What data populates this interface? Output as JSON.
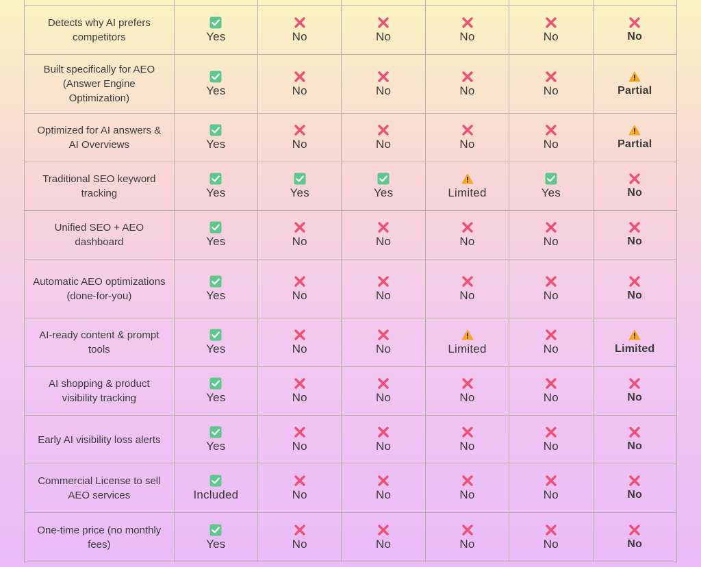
{
  "rows": [
    {
      "feature": "Detects why AI prefers competitors",
      "cells": [
        [
          "check",
          "Yes"
        ],
        [
          "x",
          "No"
        ],
        [
          "x",
          "No"
        ],
        [
          "x",
          "No"
        ],
        [
          "x",
          "No"
        ],
        [
          "x",
          "No"
        ]
      ]
    },
    {
      "feature": "Built specifically for AEO (Answer Engine Optimization)",
      "cells": [
        [
          "check",
          "Yes"
        ],
        [
          "x",
          "No"
        ],
        [
          "x",
          "No"
        ],
        [
          "x",
          "No"
        ],
        [
          "x",
          "No"
        ],
        [
          "warn",
          "Partial"
        ]
      ]
    },
    {
      "feature": "Optimized for AI answers & AI Overviews",
      "cells": [
        [
          "check",
          "Yes"
        ],
        [
          "x",
          "No"
        ],
        [
          "x",
          "No"
        ],
        [
          "x",
          "No"
        ],
        [
          "x",
          "No"
        ],
        [
          "warn",
          "Partial"
        ]
      ]
    },
    {
      "feature": "Traditional SEO keyword tracking",
      "cells": [
        [
          "check",
          "Yes"
        ],
        [
          "check",
          "Yes"
        ],
        [
          "check",
          "Yes"
        ],
        [
          "warn",
          "Limited"
        ],
        [
          "check",
          "Yes"
        ],
        [
          "x",
          "No"
        ]
      ]
    },
    {
      "feature": "Unified SEO + AEO dashboard",
      "cells": [
        [
          "check",
          "Yes"
        ],
        [
          "x",
          "No"
        ],
        [
          "x",
          "No"
        ],
        [
          "x",
          "No"
        ],
        [
          "x",
          "No"
        ],
        [
          "x",
          "No"
        ]
      ]
    },
    {
      "feature": "Automatic AEO optimizations (done-for-you)",
      "cells": [
        [
          "check",
          "Yes"
        ],
        [
          "x",
          "No"
        ],
        [
          "x",
          "No"
        ],
        [
          "x",
          "No"
        ],
        [
          "x",
          "No"
        ],
        [
          "x",
          "No"
        ]
      ]
    },
    {
      "feature": "AI-ready content & prompt tools",
      "cells": [
        [
          "check",
          "Yes"
        ],
        [
          "x",
          "No"
        ],
        [
          "x",
          "No"
        ],
        [
          "warn",
          "Limited"
        ],
        [
          "x",
          "No"
        ],
        [
          "warn",
          "Limited"
        ]
      ]
    },
    {
      "feature": "AI shopping & product visibility tracking",
      "cells": [
        [
          "check",
          "Yes"
        ],
        [
          "x",
          "No"
        ],
        [
          "x",
          "No"
        ],
        [
          "x",
          "No"
        ],
        [
          "x",
          "No"
        ],
        [
          "x",
          "No"
        ]
      ]
    },
    {
      "feature": "Early AI visibility loss alerts",
      "cells": [
        [
          "check",
          "Yes"
        ],
        [
          "x",
          "No"
        ],
        [
          "x",
          "No"
        ],
        [
          "x",
          "No"
        ],
        [
          "x",
          "No"
        ],
        [
          "x",
          "No"
        ]
      ]
    },
    {
      "feature": "Commercial License to sell AEO services",
      "cells": [
        [
          "check",
          "Included"
        ],
        [
          "x",
          "No"
        ],
        [
          "x",
          "No"
        ],
        [
          "x",
          "No"
        ],
        [
          "x",
          "No"
        ],
        [
          "x",
          "No"
        ]
      ]
    },
    {
      "feature": "One-time price (no monthly fees)",
      "cells": [
        [
          "check",
          "Yes"
        ],
        [
          "x",
          "No"
        ],
        [
          "x",
          "No"
        ],
        [
          "x",
          "No"
        ],
        [
          "x",
          "No"
        ],
        [
          "x",
          "No"
        ]
      ]
    }
  ],
  "icons": {
    "check": {
      "name": "check-mark-icon",
      "color": "#5cc88d"
    },
    "x": {
      "name": "cross-mark-icon",
      "color": "#ef4f75"
    },
    "warn": {
      "name": "warning-icon",
      "color": "#f5a623"
    }
  }
}
